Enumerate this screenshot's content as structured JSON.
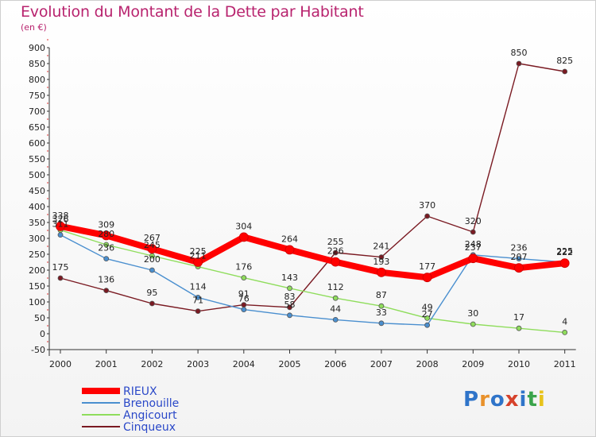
{
  "title": "Evolution du Montant de la Dette par Habitant",
  "subtitle": "(en €)",
  "logo": {
    "letters": [
      "P",
      "r",
      "o",
      "x",
      "i",
      "t",
      "i"
    ],
    "colors": [
      "#2f74c9",
      "#e8912b",
      "#2f74c9",
      "#d6422b",
      "#2f74c9",
      "#3aa44b",
      "#e8c31b"
    ]
  },
  "chart_data": {
    "type": "line",
    "x": [
      "2000",
      "2001",
      "2002",
      "2003",
      "2004",
      "2005",
      "2006",
      "2007",
      "2008",
      "2009",
      "2010",
      "2011"
    ],
    "yticks": [
      "-50",
      "0",
      "50",
      "100",
      "150",
      "200",
      "250",
      "300",
      "350",
      "400",
      "450",
      "500",
      "550",
      "600",
      "650",
      "700",
      "750",
      "800",
      "850",
      "900"
    ],
    "ylim": [
      -50,
      900
    ],
    "grid": false,
    "legend_position": "bottom-left",
    "series": [
      {
        "name": "RIEUX",
        "color": "#ff0000",
        "values": [
          338,
          309,
          267,
          225,
          304,
          264,
          226,
          193,
          177,
          237,
          207,
          222
        ],
        "labels": [
          "338",
          "309",
          "267",
          "225",
          "304",
          "264",
          "226",
          "193",
          "177",
          "237",
          "207",
          "222"
        ]
      },
      {
        "name": "Brenouille",
        "color": "#4a8fcf",
        "values": [
          311,
          236,
          200,
          114,
          76,
          58,
          44,
          33,
          27,
          248,
          236,
          225
        ],
        "labels": [
          "311",
          "236",
          "200",
          "114",
          "76",
          "58",
          "44",
          "33",
          "27",
          "248",
          "236",
          "225"
        ]
      },
      {
        "name": "Angicourt",
        "color": "#8fdd5c",
        "values": [
          326,
          280,
          245,
          211,
          176,
          143,
          112,
          87,
          49,
          30,
          17,
          4
        ],
        "labels": [
          "326",
          "280",
          "245",
          "211",
          "176",
          "143",
          "112",
          "87",
          "49",
          "30",
          "17",
          "4"
        ]
      },
      {
        "name": "Cinqueux",
        "color": "#7a1a22",
        "values": [
          175,
          136,
          95,
          71,
          91,
          83,
          255,
          241,
          370,
          320,
          850,
          825
        ],
        "labels": [
          "175",
          "136",
          "95",
          "71",
          "91",
          "83",
          "255",
          "241",
          "370",
          "320",
          "850",
          "825"
        ]
      }
    ]
  }
}
